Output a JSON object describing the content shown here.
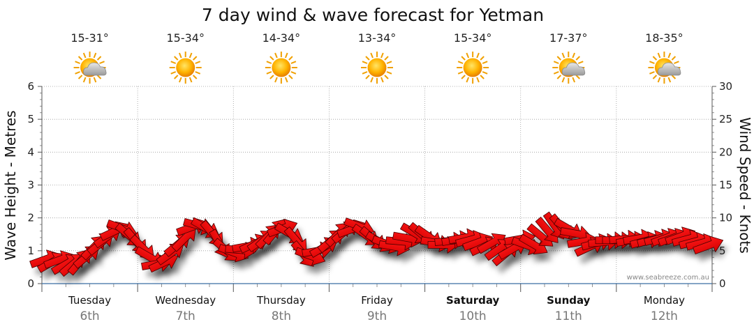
{
  "chart_data": {
    "type": "line",
    "title": "7 day wind & wave forecast for Yetman",
    "ylabel_left": "Wave Height - Metres",
    "ylabel_right": "Wind Speed - Knots",
    "ylim_left": [
      0,
      6
    ],
    "ylim_right": [
      0,
      30
    ],
    "yticks_left": [
      "0",
      "1",
      "2",
      "3",
      "4",
      "5",
      "6"
    ],
    "yticks_right": [
      "0",
      "5",
      "10",
      "15",
      "20",
      "25",
      "30"
    ],
    "grid": true,
    "watermark": "www.seabreeze.com.au",
    "days": [
      {
        "name": "Tuesday",
        "date": "6th",
        "temp": "15-31°",
        "icon": "partly-cloudy-icon",
        "bold": false
      },
      {
        "name": "Wednesday",
        "date": "7th",
        "temp": "15-34°",
        "icon": "sunny-icon",
        "bold": false
      },
      {
        "name": "Thursday",
        "date": "8th",
        "temp": "14-34°",
        "icon": "sunny-icon",
        "bold": false
      },
      {
        "name": "Friday",
        "date": "9th",
        "temp": "13-34°",
        "icon": "sunny-icon",
        "bold": false
      },
      {
        "name": "Saturday",
        "date": "10th",
        "temp": "15-34°",
        "icon": "sunny-icon",
        "bold": true
      },
      {
        "name": "Sunday",
        "date": "11th",
        "temp": "17-37°",
        "icon": "partly-cloudy-icon",
        "bold": true
      },
      {
        "name": "Monday",
        "date": "12th",
        "temp": "18-35°",
        "icon": "partly-cloudy-icon",
        "bold": false
      }
    ],
    "wind_series": {
      "name": "Wind",
      "unit": "knots",
      "interval_hours": 3,
      "speed": [
        3.7,
        3.3,
        3.6,
        3.0,
        3.0,
        3.4,
        4.2,
        5.6,
        6.2,
        7.2,
        8.0,
        8.4,
        7.3,
        6.4,
        5.4,
        4.0,
        3.0,
        3.2,
        4.6,
        6.0,
        6.9,
        8.6,
        8.8,
        8.4,
        7.5,
        6.0,
        5.0,
        4.7,
        5.1,
        5.7,
        6.1,
        6.6,
        7.3,
        8.0,
        8.4,
        7.6,
        6.5,
        4.4,
        4.2,
        5.0,
        5.6,
        6.6,
        7.6,
        8.0,
        8.3,
        8.7,
        7.3,
        6.8,
        6.3,
        6.0,
        5.6,
        6.4,
        6.9,
        7.6,
        7.4,
        7.1,
        6.2,
        5.9,
        6.5,
        6.7,
        7.0,
        6.7,
        6.3,
        5.7,
        6.2,
        5.3,
        4.6,
        5.3,
        6.8,
        5.8,
        5.9,
        7.2,
        8.0,
        8.7,
        8.5,
        8.3,
        7.6,
        6.4,
        5.6,
        6.2,
        6.3,
        6.6,
        6.6,
        6.8,
        6.6,
        6.9,
        6.5,
        6.7,
        6.9,
        7.0,
        7.0,
        7.2,
        6.8,
        6.4,
        6.2,
        5.8
      ],
      "direction_deg": [
        250,
        240,
        250,
        240,
        230,
        220,
        230,
        225,
        230,
        235,
        245,
        290,
        310,
        320,
        315,
        300,
        260,
        245,
        235,
        230,
        225,
        250,
        285,
        300,
        320,
        330,
        310,
        290,
        275,
        260,
        245,
        235,
        225,
        220,
        250,
        300,
        320,
        320,
        290,
        260,
        240,
        230,
        225,
        230,
        250,
        290,
        305,
        310,
        300,
        290,
        280,
        275,
        280,
        300,
        310,
        305,
        280,
        270,
        265,
        260,
        260,
        255,
        250,
        245,
        240,
        235,
        230,
        240,
        260,
        290,
        300,
        310,
        320,
        325,
        320,
        300,
        280,
        260,
        245,
        255,
        265,
        270,
        270,
        265,
        260,
        260,
        255,
        255,
        255,
        250,
        250,
        250,
        255,
        255,
        255,
        250
      ]
    }
  }
}
